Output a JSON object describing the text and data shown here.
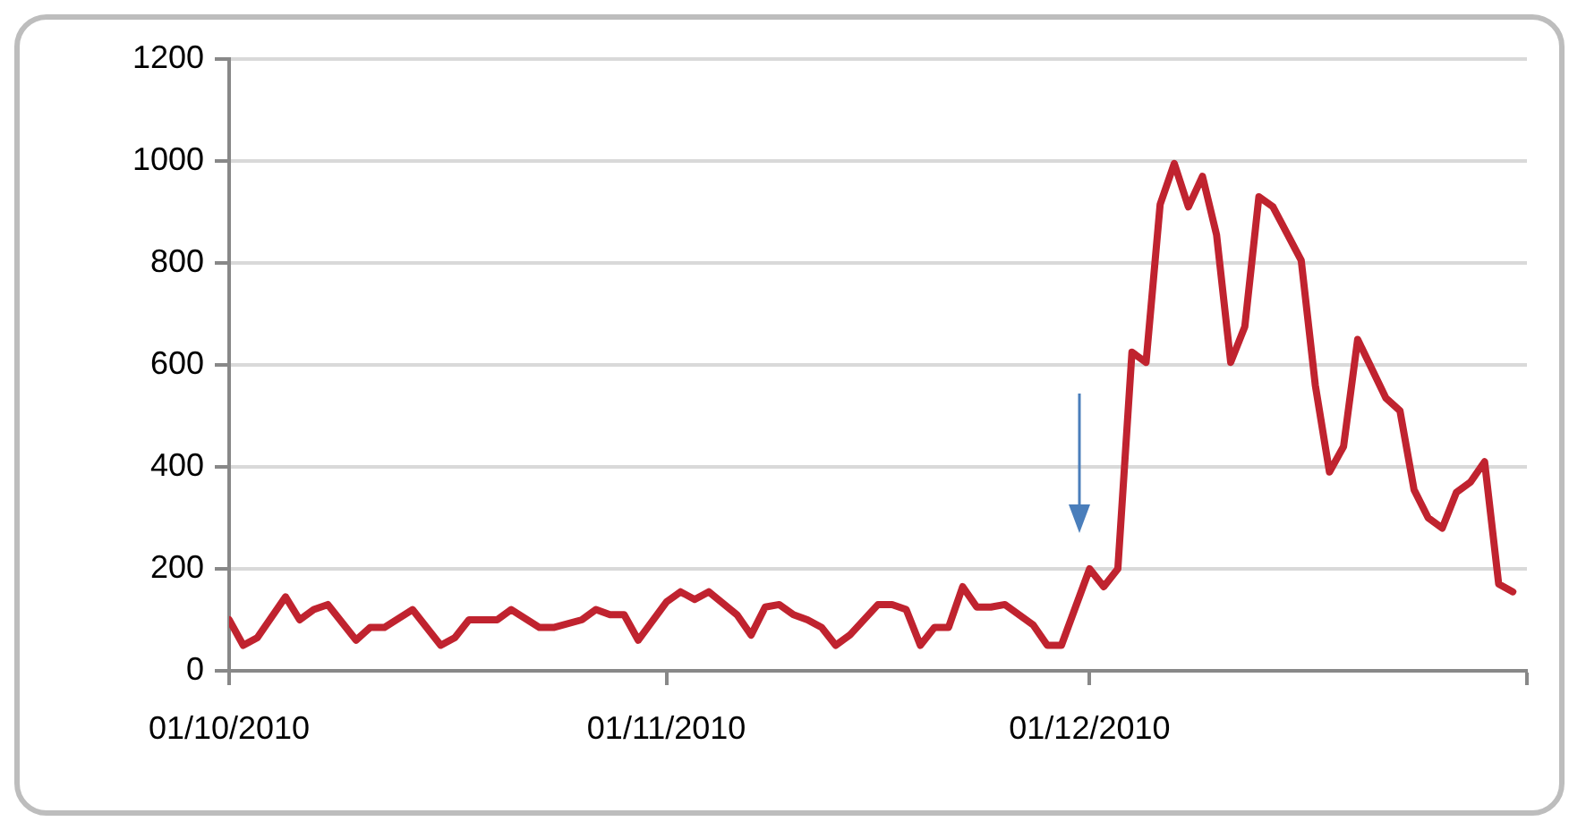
{
  "chart_data": {
    "type": "line",
    "grid": "y",
    "legend": false,
    "marker": "none",
    "line_style": "solid",
    "xlim": [
      "2010-10-01",
      "2011-01-01"
    ],
    "xticks": [
      {
        "value": "2010-10-01",
        "label": "01/10/2010"
      },
      {
        "value": "2010-11-01",
        "label": "01/11/2010"
      },
      {
        "value": "2010-12-01",
        "label": "01/12/2010"
      },
      {
        "value": "2011-01-01",
        "label": null
      }
    ],
    "ylim": [
      0,
      1200
    ],
    "yticks": [
      0,
      200,
      400,
      600,
      800,
      1000,
      1200
    ],
    "x": [
      "2010-10-01",
      "2010-10-02",
      "2010-10-03",
      "2010-10-05",
      "2010-10-06",
      "2010-10-07",
      "2010-10-08",
      "2010-10-10",
      "2010-10-11",
      "2010-10-12",
      "2010-10-14",
      "2010-10-16",
      "2010-10-17",
      "2010-10-18",
      "2010-10-20",
      "2010-10-21",
      "2010-10-23",
      "2010-10-24",
      "2010-10-26",
      "2010-10-27",
      "2010-10-28",
      "2010-10-29",
      "2010-10-30",
      "2010-11-01",
      "2010-11-02",
      "2010-11-03",
      "2010-11-04",
      "2010-11-06",
      "2010-11-07",
      "2010-11-08",
      "2010-11-09",
      "2010-11-10",
      "2010-11-11",
      "2010-11-12",
      "2010-11-13",
      "2010-11-14",
      "2010-11-16",
      "2010-11-17",
      "2010-11-18",
      "2010-11-19",
      "2010-11-20",
      "2010-11-21",
      "2010-11-22",
      "2010-11-23",
      "2010-11-24",
      "2010-11-25",
      "2010-11-27",
      "2010-11-28",
      "2010-11-29",
      "2010-12-01",
      "2010-12-02",
      "2010-12-03",
      "2010-12-04",
      "2010-12-05",
      "2010-12-06",
      "2010-12-07",
      "2010-12-08",
      "2010-12-09",
      "2010-12-10",
      "2010-12-11",
      "2010-12-12",
      "2010-12-13",
      "2010-12-14",
      "2010-12-16",
      "2010-12-17",
      "2010-12-18",
      "2010-12-19",
      "2010-12-20",
      "2010-12-22",
      "2010-12-23",
      "2010-12-24",
      "2010-12-25",
      "2010-12-26",
      "2010-12-27",
      "2010-12-28",
      "2010-12-29",
      "2010-12-30",
      "2010-12-31"
    ],
    "series": [
      {
        "color": "#c0232f",
        "values": [
          100,
          50,
          65,
          145,
          100,
          120,
          130,
          60,
          85,
          85,
          120,
          50,
          65,
          100,
          100,
          120,
          85,
          85,
          100,
          120,
          110,
          110,
          60,
          135,
          155,
          140,
          155,
          110,
          70,
          125,
          130,
          110,
          100,
          85,
          50,
          70,
          130,
          130,
          120,
          50,
          85,
          85,
          165,
          125,
          125,
          130,
          90,
          50,
          50,
          200,
          165,
          200,
          625,
          605,
          915,
          995,
          910,
          970,
          855,
          605,
          675,
          930,
          910,
          805,
          560,
          390,
          440,
          650,
          535,
          510,
          355,
          300,
          280,
          350,
          370,
          410,
          170,
          155
        ]
      }
    ]
  }
}
